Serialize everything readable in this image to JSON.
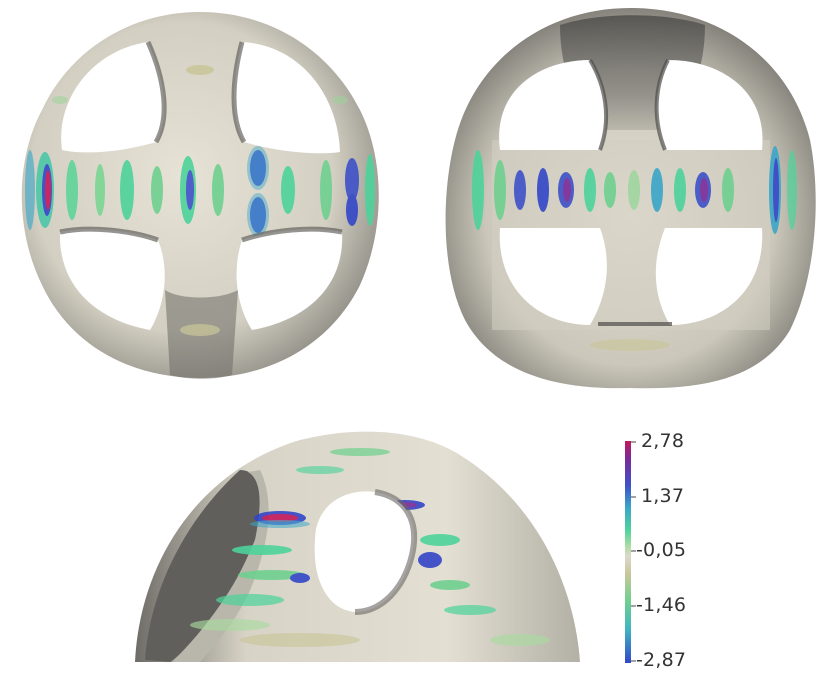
{
  "figure": {
    "views": [
      {
        "name": "front-view"
      },
      {
        "name": "oblique-view"
      },
      {
        "name": "side-view"
      }
    ]
  },
  "colorbar": {
    "tick_labels": [
      "2,78",
      "1,37",
      "-0,05",
      "-1,46",
      "-2,87"
    ],
    "range": [
      -2.87,
      2.78
    ],
    "colors": [
      "#c2185b",
      "#7a2a9a",
      "#3f51c8",
      "#3aa6c9",
      "#4dd39b",
      "#a9dca0",
      "#d9d6c8",
      "#c9c69a",
      "#6fd08f",
      "#3fb5c2",
      "#3346c8"
    ]
  }
}
